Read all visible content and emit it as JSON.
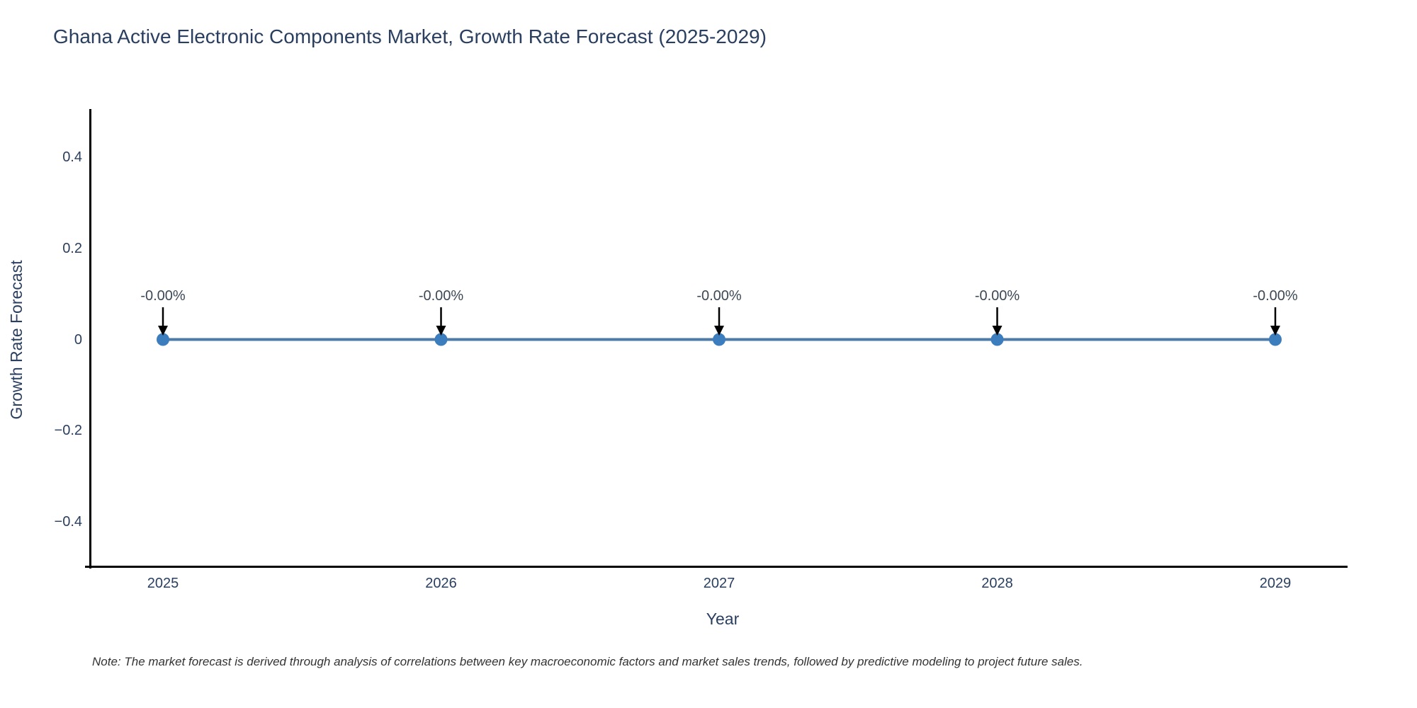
{
  "note": "Note: The market forecast is derived through analysis of correlations between key macroeconomic factors and market sales trends, followed by predictive modeling to project future sales.",
  "chart_data": {
    "type": "line",
    "title": "Ghana Active Electronic Components Market, Growth Rate Forecast (2025-2029)",
    "xlabel": "Year",
    "ylabel": "Growth Rate Forecast",
    "x": [
      2025,
      2026,
      2027,
      2028,
      2029
    ],
    "y": [
      0,
      0,
      0,
      0,
      0
    ],
    "point_labels": [
      "-0.00%",
      "-0.00%",
      "-0.00%",
      "-0.00%",
      "-0.00%"
    ],
    "xtick_labels": [
      "2025",
      "2026",
      "2027",
      "2028",
      "2029"
    ],
    "yticks": [
      0.4,
      0.2,
      0,
      -0.2,
      -0.4
    ],
    "ytick_labels": [
      "0.4",
      "0.2",
      "0",
      "−0.2",
      "−0.4"
    ],
    "ylim": [
      -0.5,
      0.5
    ],
    "grid": false,
    "legend": "none",
    "line_color": "#4d7aa6",
    "marker_color": "#3c7ebd",
    "axis_color": "#000000",
    "arrow_color": "#000000",
    "text_color": "#2a3f5f",
    "line_width": 4,
    "marker_radius": 9
  }
}
